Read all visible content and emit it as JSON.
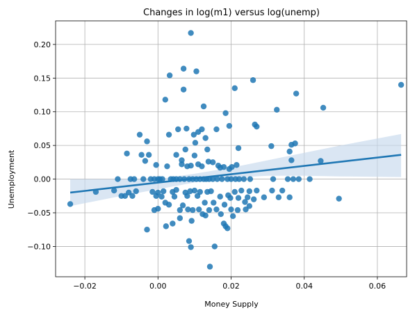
{
  "chart_data": {
    "type": "scatter",
    "title": "Changes in log(m1) versus log(unemp)",
    "xlabel": "Money Supply",
    "ylabel": "Unemployment",
    "xlim": [
      -0.028,
      0.068
    ],
    "ylim": [
      -0.145,
      0.235
    ],
    "xticks": [
      -0.02,
      0.0,
      0.02,
      0.04,
      0.06
    ],
    "xtick_labels": [
      "−0.02",
      "0.00",
      "0.02",
      "0.04",
      "0.06"
    ],
    "yticks": [
      -0.1,
      -0.05,
      0.0,
      0.05,
      0.1,
      0.15,
      0.2
    ],
    "ytick_labels": [
      "−0.10",
      "−0.05",
      "0.00",
      "0.05",
      "0.10",
      "0.15",
      "0.20"
    ],
    "grid": true,
    "colors": {
      "points": "#1f77b4",
      "line": "#1f77b4",
      "band": "#c6d9ec"
    },
    "regression": {
      "x": [
        -0.024,
        0.0665
      ],
      "y": [
        -0.02,
        0.036
      ]
    },
    "confidence_band": {
      "x": [
        -0.024,
        -0.01,
        0.0,
        0.01,
        0.02,
        0.03,
        0.04,
        0.05,
        0.0665
      ],
      "upper": [
        0.0,
        0.0,
        0.0,
        0.008,
        0.017,
        0.028,
        0.039,
        0.05,
        0.067
      ],
      "lower": [
        -0.04,
        -0.025,
        -0.015,
        -0.005,
        0.002,
        0.005,
        0.005,
        0.004,
        0.003
      ]
    },
    "points": [
      [
        -0.024,
        -0.037
      ],
      [
        -0.017,
        -0.019
      ],
      [
        -0.012,
        -0.017
      ],
      [
        -0.011,
        0.0
      ],
      [
        -0.01,
        -0.025
      ],
      [
        -0.009,
        -0.025
      ],
      [
        -0.0085,
        0.038
      ],
      [
        -0.008,
        -0.02
      ],
      [
        -0.0075,
        0.0
      ],
      [
        -0.007,
        -0.025
      ],
      [
        -0.0065,
        0.0
      ],
      [
        -0.006,
        -0.018
      ],
      [
        -0.005,
        0.066
      ],
      [
        -0.0045,
        0.036
      ],
      [
        -0.004,
        0.0
      ],
      [
        -0.0035,
        0.027
      ],
      [
        -0.003,
        0.056
      ],
      [
        -0.003,
        -0.075
      ],
      [
        -0.0025,
        0.036
      ],
      [
        -0.002,
        0.0
      ],
      [
        -0.0015,
        -0.019
      ],
      [
        -0.001,
        0.0
      ],
      [
        -0.001,
        -0.046
      ],
      [
        -0.0005,
        -0.025
      ],
      [
        -0.0005,
        0.021
      ],
      [
        0.0,
        -0.044
      ],
      [
        0.0,
        0.0
      ],
      [
        0.0,
        -0.02
      ],
      [
        0.0005,
        0.0
      ],
      [
        0.001,
        -0.026
      ],
      [
        0.0012,
        0.0
      ],
      [
        0.0015,
        -0.018
      ],
      [
        0.002,
        -0.035
      ],
      [
        0.002,
        0.118
      ],
      [
        0.0022,
        -0.07
      ],
      [
        0.0025,
        0.019
      ],
      [
        0.003,
        -0.038
      ],
      [
        0.003,
        0.066
      ],
      [
        0.0032,
        0.154
      ],
      [
        0.0035,
        0.0
      ],
      [
        0.004,
        -0.019
      ],
      [
        0.004,
        -0.066
      ],
      [
        0.0042,
        0.0
      ],
      [
        0.0045,
        -0.026
      ],
      [
        0.005,
        0.036
      ],
      [
        0.005,
        -0.016
      ],
      [
        0.005,
        0.0
      ],
      [
        0.0055,
        0.074
      ],
      [
        0.006,
        -0.058
      ],
      [
        0.006,
        0.0
      ],
      [
        0.006,
        -0.046
      ],
      [
        0.0065,
        0.022
      ],
      [
        0.0065,
        0.028
      ],
      [
        0.0068,
        -0.039
      ],
      [
        0.007,
        0.164
      ],
      [
        0.007,
        0.133
      ],
      [
        0.0072,
        0.0
      ],
      [
        0.0075,
        -0.02
      ],
      [
        0.0075,
        0.044
      ],
      [
        0.0078,
        0.075
      ],
      [
        0.008,
        -0.025
      ],
      [
        0.008,
        0.019
      ],
      [
        0.0082,
        -0.045
      ],
      [
        0.0085,
        -0.092
      ],
      [
        0.0085,
        0.0
      ],
      [
        0.0088,
        -0.018
      ],
      [
        0.009,
        0.217
      ],
      [
        0.009,
        -0.101
      ],
      [
        0.009,
        0.02
      ],
      [
        0.0092,
        -0.062
      ],
      [
        0.0095,
        0.0
      ],
      [
        0.0095,
        -0.046
      ],
      [
        0.0098,
        0.066
      ],
      [
        0.01,
        0.035
      ],
      [
        0.01,
        -0.017
      ],
      [
        0.0102,
        0.054
      ],
      [
        0.0105,
        0.16
      ],
      [
        0.0105,
        0.0
      ],
      [
        0.0108,
        -0.025
      ],
      [
        0.011,
        0.07
      ],
      [
        0.011,
        0.022
      ],
      [
        0.0112,
        -0.045
      ],
      [
        0.0115,
        0.0
      ],
      [
        0.0115,
        -0.019
      ],
      [
        0.012,
        0.074
      ],
      [
        0.012,
        0.019
      ],
      [
        0.0122,
        -0.052
      ],
      [
        0.0125,
        0.108
      ],
      [
        0.0125,
        0.0
      ],
      [
        0.0128,
        -0.035
      ],
      [
        0.013,
        0.061
      ],
      [
        0.013,
        -0.054
      ],
      [
        0.0132,
        0.0
      ],
      [
        0.0135,
        0.044
      ],
      [
        0.0135,
        -0.019
      ],
      [
        0.0138,
        0.026
      ],
      [
        0.014,
        -0.046
      ],
      [
        0.014,
        0.0
      ],
      [
        0.0142,
        -0.13
      ],
      [
        0.0145,
        -0.018
      ],
      [
        0.015,
        0.025
      ],
      [
        0.015,
        0.0
      ],
      [
        0.0152,
        -0.035
      ],
      [
        0.0155,
        -0.1
      ],
      [
        0.016,
        0.074
      ],
      [
        0.016,
        -0.045
      ],
      [
        0.0162,
        0.0
      ],
      [
        0.0165,
        0.02
      ],
      [
        0.017,
        -0.026
      ],
      [
        0.017,
        0.017
      ],
      [
        0.0172,
        -0.052
      ],
      [
        0.0175,
        0.0
      ],
      [
        0.018,
        -0.066
      ],
      [
        0.018,
        0.018
      ],
      [
        0.0182,
        -0.038
      ],
      [
        0.0185,
        0.098
      ],
      [
        0.0185,
        -0.07
      ],
      [
        0.019,
        0.0
      ],
      [
        0.019,
        -0.073
      ],
      [
        0.0192,
        -0.024
      ],
      [
        0.0195,
        0.079
      ],
      [
        0.0195,
        0.015
      ],
      [
        0.0198,
        -0.028
      ],
      [
        0.02,
        0.0
      ],
      [
        0.02,
        -0.045
      ],
      [
        0.0202,
        0.018
      ],
      [
        0.0205,
        -0.055
      ],
      [
        0.021,
        0.135
      ],
      [
        0.021,
        -0.019
      ],
      [
        0.0212,
        0.0
      ],
      [
        0.0215,
        0.021
      ],
      [
        0.0218,
        -0.046
      ],
      [
        0.022,
        0.046
      ],
      [
        0.022,
        -0.028
      ],
      [
        0.0222,
        0.0
      ],
      [
        0.0228,
        -0.017
      ],
      [
        0.0235,
        0.0
      ],
      [
        0.0238,
        -0.034
      ],
      [
        0.024,
        -0.045
      ],
      [
        0.0245,
        -0.027
      ],
      [
        0.025,
        -0.018
      ],
      [
        0.025,
        -0.04
      ],
      [
        0.0252,
        0.0
      ],
      [
        0.026,
        0.147
      ],
      [
        0.0262,
        -0.03
      ],
      [
        0.0265,
        0.081
      ],
      [
        0.027,
        0.078
      ],
      [
        0.027,
        -0.017
      ],
      [
        0.029,
        -0.027
      ],
      [
        0.031,
        0.049
      ],
      [
        0.0312,
        -0.017
      ],
      [
        0.0315,
        0.0
      ],
      [
        0.0325,
        0.103
      ],
      [
        0.033,
        -0.027
      ],
      [
        0.034,
        -0.017
      ],
      [
        0.0355,
        0.0
      ],
      [
        0.036,
        -0.027
      ],
      [
        0.036,
        0.041
      ],
      [
        0.0365,
        0.028
      ],
      [
        0.0365,
        0.051
      ],
      [
        0.037,
        0.0
      ],
      [
        0.0375,
        0.053
      ],
      [
        0.0378,
        0.127
      ],
      [
        0.0385,
        0.0
      ],
      [
        0.0415,
        0.0
      ],
      [
        0.0445,
        0.027
      ],
      [
        0.0452,
        0.106
      ],
      [
        0.0495,
        -0.029
      ],
      [
        0.0665,
        0.14
      ]
    ]
  }
}
